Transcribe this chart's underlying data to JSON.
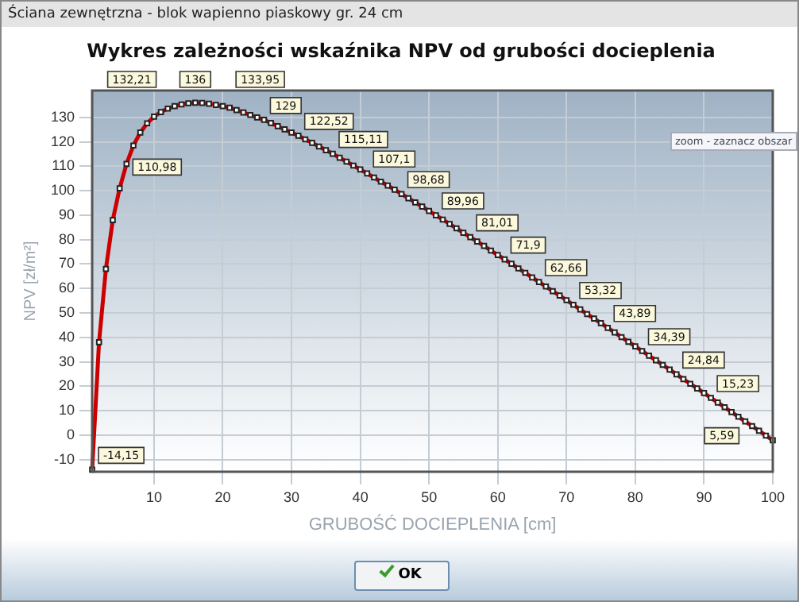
{
  "chart_data": {
    "type": "line",
    "title": "Wykres zależności wskaźnika NPV od grubości docieplenia",
    "xlabel": "GRUBOŚĆ DOCIEPLENIA [cm]",
    "ylabel": "NPV [zł/m²]",
    "annotations": [
      "Ściana zewnętrzna - blok wapienno piaskowy gr. 24 cm",
      "zoom - zaznacz obszar",
      "OK"
    ],
    "x": [
      1,
      2,
      3,
      4,
      5,
      6,
      7,
      8,
      9,
      10,
      11,
      12,
      13,
      14,
      15,
      16,
      17,
      18,
      19,
      20,
      21,
      22,
      23,
      24,
      25,
      26,
      27,
      28,
      29,
      30,
      31,
      32,
      33,
      34,
      35,
      36,
      37,
      38,
      39,
      40,
      41,
      42,
      43,
      44,
      45,
      46,
      47,
      48,
      49,
      50,
      51,
      52,
      53,
      54,
      55,
      56,
      57,
      58,
      59,
      60,
      61,
      62,
      63,
      64,
      65,
      66,
      67,
      68,
      69,
      70,
      71,
      72,
      73,
      74,
      75,
      76,
      77,
      78,
      79,
      80,
      81,
      82,
      83,
      84,
      85,
      86,
      87,
      88,
      89,
      90,
      91,
      92,
      93,
      94,
      95,
      96,
      97,
      98,
      99,
      100
    ],
    "series": [
      {
        "color": "#cc0000",
        "values": [
          -14.15,
          38,
          68,
          88,
          101,
          110.98,
          118.5,
          123.8,
          127.6,
          130.3,
          132.21,
          133.6,
          134.6,
          135.3,
          135.8,
          136,
          135.9,
          135.6,
          135.1,
          134.6,
          133.95,
          133,
          132,
          131,
          130,
          129,
          127.7,
          126.4,
          125.1,
          123.8,
          122.52,
          121,
          119.6,
          118.1,
          116.6,
          115.11,
          113.5,
          111.9,
          110.3,
          108.7,
          107.1,
          105.4,
          103.7,
          102.1,
          100.4,
          98.68,
          96.9,
          95.2,
          93.5,
          91.7,
          89.96,
          88.2,
          86.4,
          84.6,
          82.8,
          81.01,
          79.2,
          77.4,
          75.5,
          73.7,
          71.9,
          70.1,
          68.2,
          66.4,
          64.5,
          62.66,
          60.8,
          58.9,
          57.1,
          55.2,
          53.32,
          51.4,
          49.5,
          47.7,
          45.8,
          43.89,
          42,
          40.1,
          38.2,
          36.3,
          34.39,
          32.5,
          30.6,
          28.7,
          26.8,
          24.84,
          22.9,
          21,
          19.1,
          17.2,
          15.23,
          13.3,
          11.4,
          9.4,
          7.5,
          5.59,
          3.7,
          1.8,
          -0.2,
          -2.1
        ],
        "value_labels": [
          "-14,15",
          null,
          null,
          null,
          null,
          "110,98",
          null,
          null,
          null,
          null,
          "132,21",
          null,
          null,
          null,
          null,
          "136",
          null,
          null,
          null,
          null,
          "133,95",
          null,
          null,
          null,
          null,
          "129",
          null,
          null,
          null,
          null,
          "122,52",
          null,
          null,
          null,
          null,
          "115,11",
          null,
          null,
          null,
          null,
          "107,1",
          null,
          null,
          null,
          null,
          "98,68",
          null,
          null,
          null,
          null,
          "89,96",
          null,
          null,
          null,
          null,
          "81,01",
          null,
          null,
          null,
          null,
          "71,9",
          null,
          null,
          null,
          null,
          "62,66",
          null,
          null,
          null,
          null,
          "53,32",
          null,
          null,
          null,
          null,
          "43,89",
          null,
          null,
          null,
          null,
          "34,39",
          null,
          null,
          null,
          null,
          "24,84",
          null,
          null,
          null,
          null,
          "15,23",
          null,
          null,
          null,
          null,
          "5,59",
          null,
          null,
          null,
          null
        ]
      }
    ],
    "xlim": [
      1,
      100
    ],
    "xticks": [
      10,
      20,
      30,
      40,
      50,
      60,
      70,
      80,
      90,
      100
    ],
    "ylim": [
      -15,
      141
    ],
    "yticks": [
      -10,
      0,
      10,
      20,
      30,
      40,
      50,
      60,
      70,
      80,
      90,
      100,
      110,
      120,
      130
    ],
    "grid": true,
    "legend": false,
    "marker": "square",
    "line_style": "solid"
  }
}
